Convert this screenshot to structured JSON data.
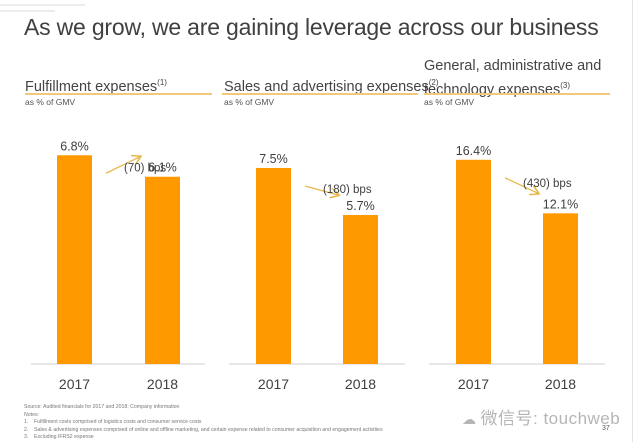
{
  "slide": {
    "title": "As we grow, we are gaining leverage across our business",
    "page_number": "37",
    "watermark_icon": "wechat-icon",
    "watermark_text": "微信号: touchweb"
  },
  "panels": [
    {
      "title_lines": [
        "Fulfillment expenses"
      ],
      "footnote_ref": "(1)",
      "subtitle": "as % of GMV"
    },
    {
      "title_lines": [
        "Sales and advertising expenses"
      ],
      "footnote_ref": "(2)",
      "subtitle": "as % of GMV"
    },
    {
      "title_lines": [
        "General, administrative and",
        "technology expenses"
      ],
      "footnote_ref": "(3)",
      "subtitle": "as % of GMV"
    }
  ],
  "footnotes": {
    "source": "Source: Audited financials for 2017 and 2018; Company information",
    "notes_label": "Notes:",
    "items": [
      {
        "num": "1.",
        "text": "Fulfillment costs comprised of logistics costs and consumer service costs"
      },
      {
        "num": "2.",
        "text": "Sales & advertising expenses comprised of online and offline marketing, and certain expense related to consumer acquisition and engagement activities"
      },
      {
        "num": "3.",
        "text": "Excluding IFRS2 expense"
      }
    ]
  },
  "colors": {
    "bar": "#ff9900",
    "arrow": "#e8b84a",
    "rule": "#f2c87a",
    "text": "#404040"
  },
  "chart_data": [
    {
      "type": "bar",
      "title": "Fulfillment expenses (1)",
      "ylabel": "as % of GMV",
      "categories": [
        "2017",
        "2018"
      ],
      "values": [
        6.8,
        6.1
      ],
      "data_labels": [
        "6.8%",
        "6.1%"
      ],
      "annotation": "(70) bps",
      "ylim": [
        0,
        8.6
      ]
    },
    {
      "type": "bar",
      "title": "Sales and advertising expenses (2)",
      "ylabel": "as % of GMV",
      "categories": [
        "2017",
        "2018"
      ],
      "values": [
        7.5,
        5.7
      ],
      "data_labels": [
        "7.5%",
        "5.7%"
      ],
      "annotation": "(180) bps",
      "ylim": [
        0,
        10.1
      ]
    },
    {
      "type": "bar",
      "title": "General, administrative and technology expenses (3)",
      "ylabel": "as % of GMV",
      "categories": [
        "2017",
        "2018"
      ],
      "values": [
        16.4,
        12.1
      ],
      "data_labels": [
        "16.4%",
        "12.1%"
      ],
      "annotation": "(430) bps",
      "ylim": [
        0,
        21.2
      ]
    }
  ]
}
